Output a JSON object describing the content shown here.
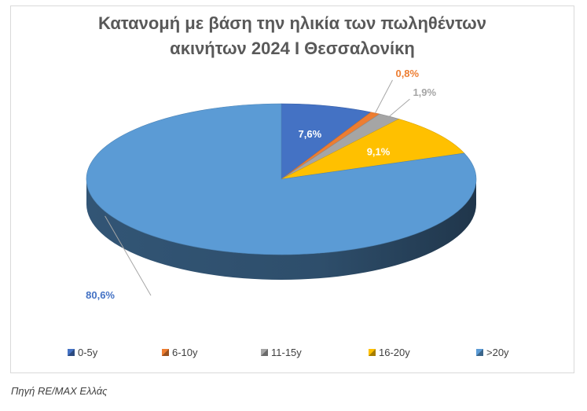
{
  "chart_data": {
    "type": "pie",
    "title_lines": [
      "Κατανομή με βάση την ηλικία των πωληθέντων",
      "ακινήτων 2024 Ι Θεσσαλονίκη"
    ],
    "categories": [
      "0-5y",
      "6-10y",
      "11-15y",
      "16-20y",
      ">20y"
    ],
    "values": [
      7.6,
      0.8,
      1.9,
      9.1,
      80.6
    ],
    "labels": [
      "7,6%",
      "0,8%",
      "1,9%",
      "9,1%",
      "80,6%"
    ],
    "colors": [
      "#4472c4",
      "#ed7d31",
      "#a5a5a5",
      "#ffc000",
      "#5b9bd5"
    ],
    "label_colors": [
      "#ffffff",
      "#ed7d31",
      "#a5a5a5",
      "#ffffff",
      "#4472c4"
    ],
    "legend_position": "bottom",
    "style": "3d"
  },
  "source": "Πηγή RE/MAX Ελλάς"
}
